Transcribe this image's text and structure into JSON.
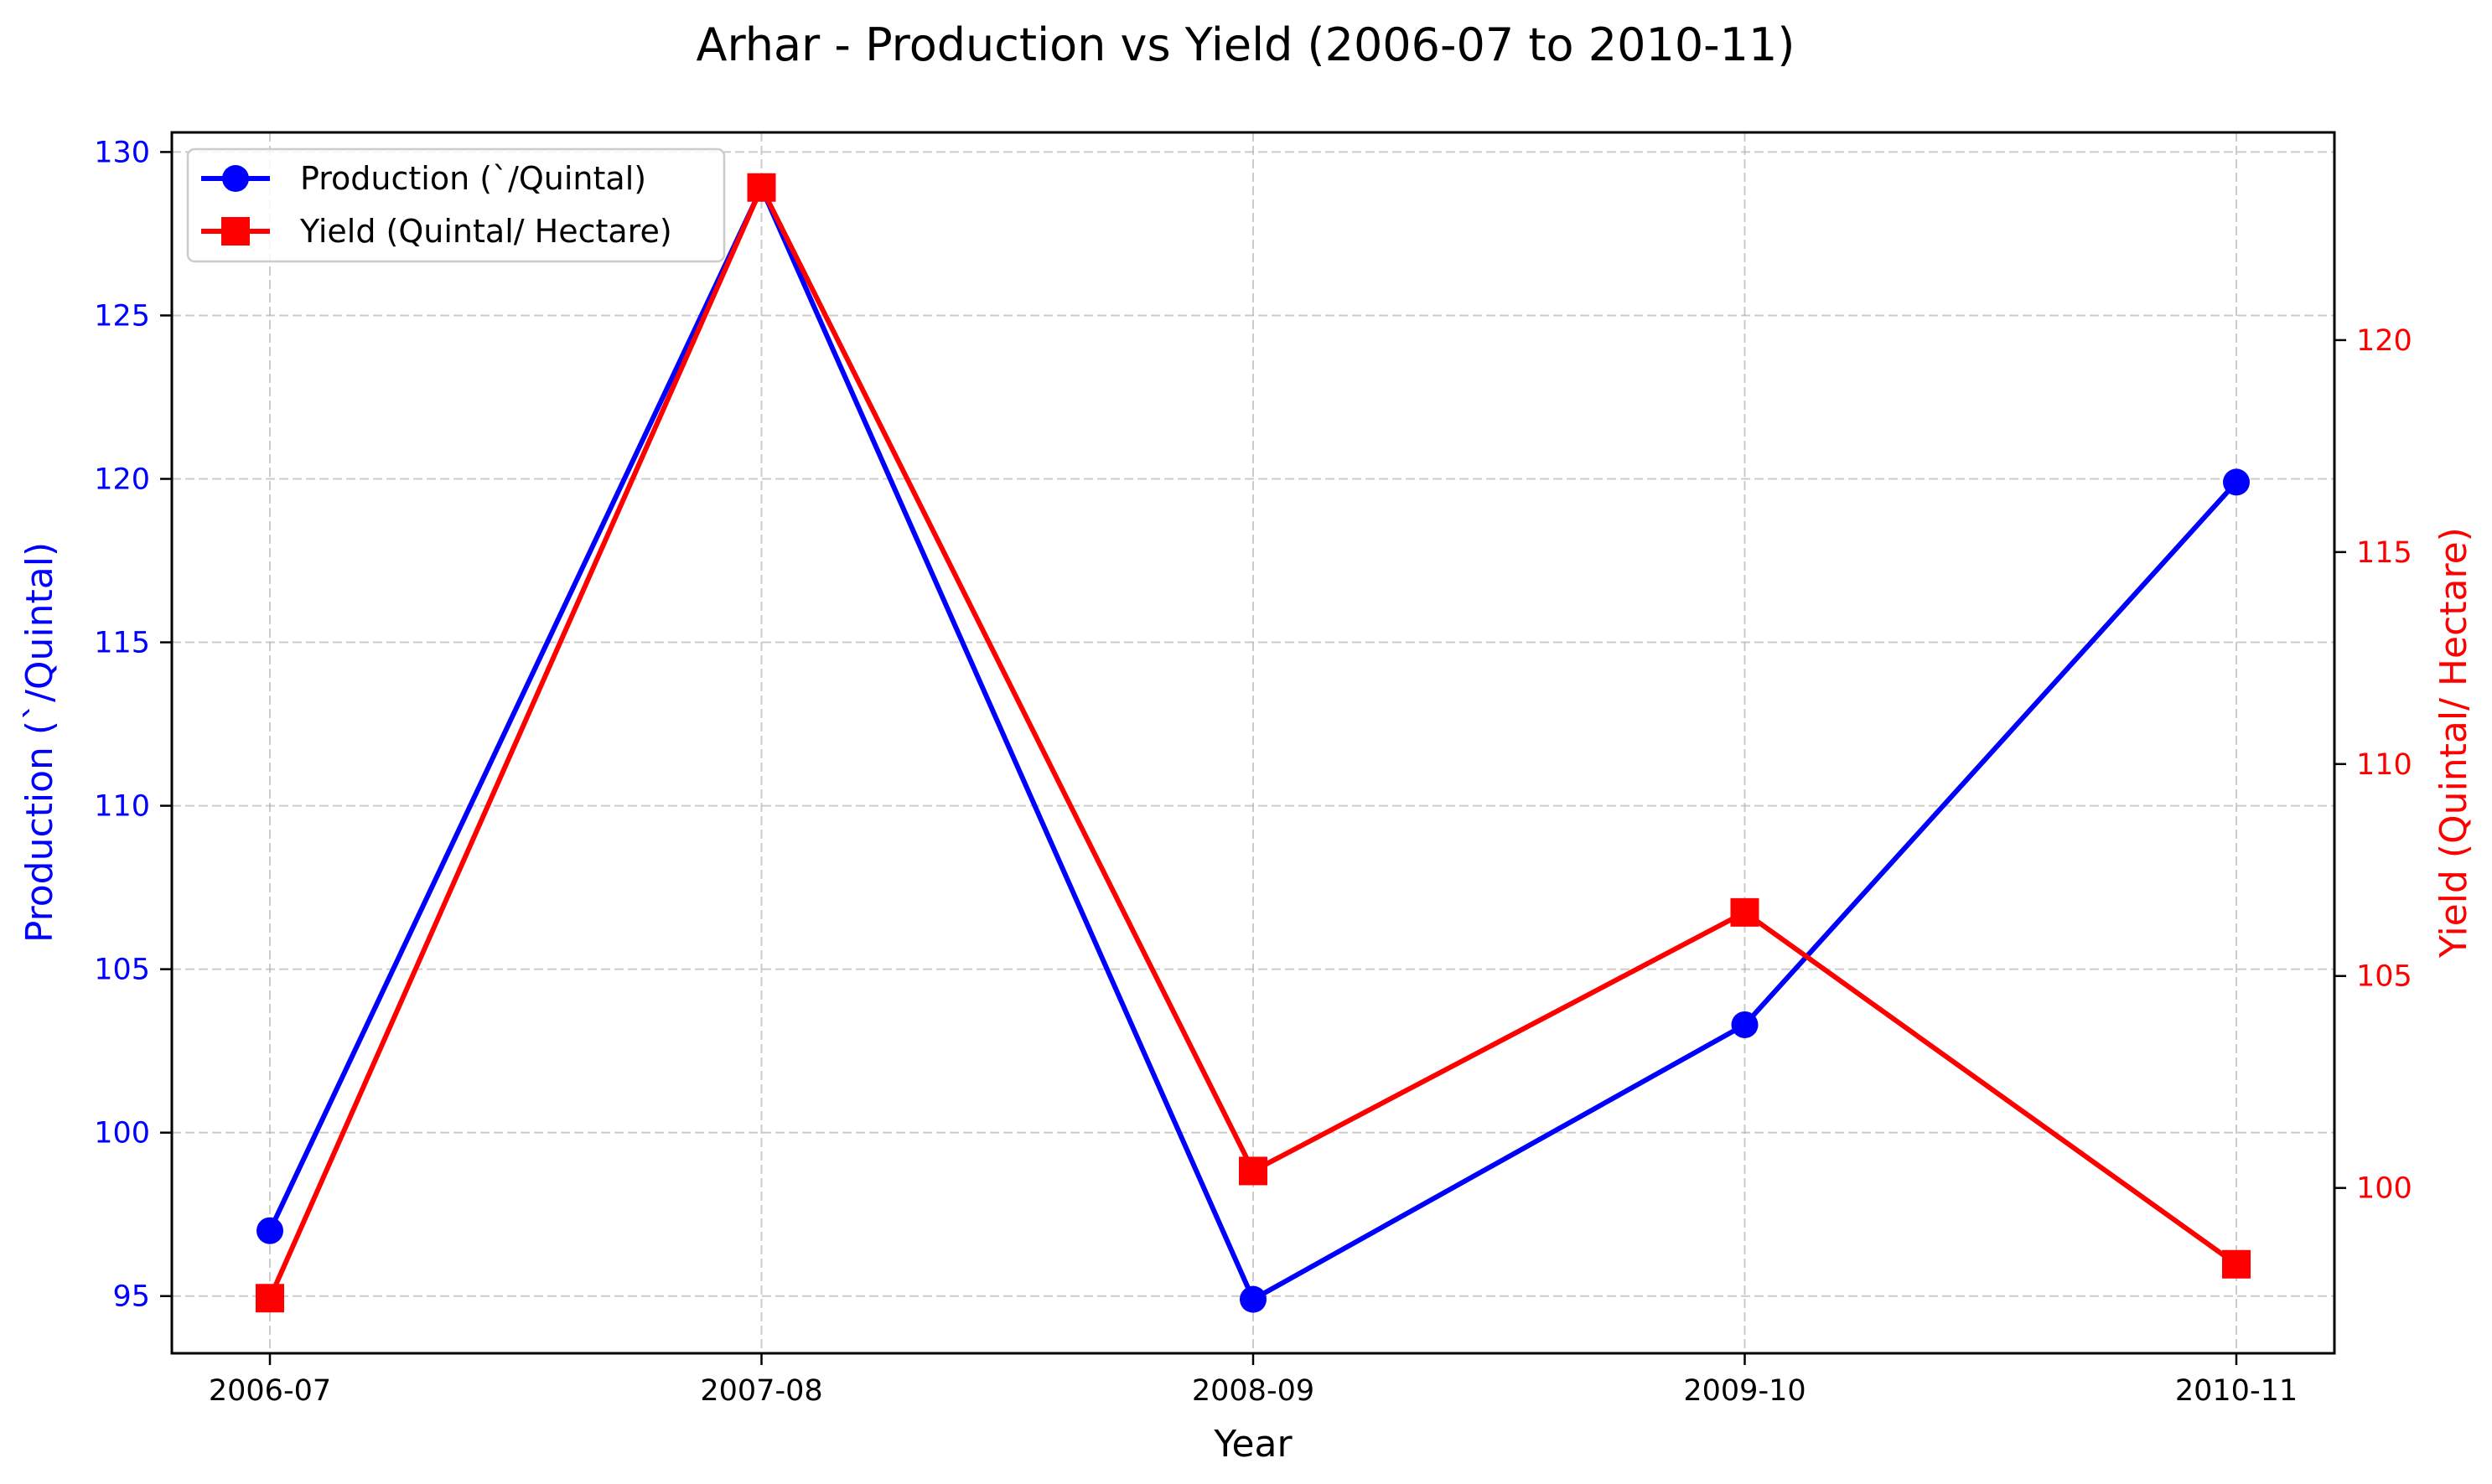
{
  "chart_data": {
    "type": "line",
    "title": "Arhar - Production vs Yield (2006-07 to 2010-11)",
    "xlabel": "Year",
    "ylabel_left": "Production (`/Quintal)",
    "ylabel_right": "Yield (Quintal/ Hectare)",
    "categories": [
      "2006-07",
      "2007-08",
      "2008-09",
      "2009-10",
      "2010-11"
    ],
    "y_left": {
      "ticks": [
        95,
        100,
        105,
        110,
        115,
        120,
        125,
        130
      ],
      "range": [
        93.25,
        130.6
      ],
      "color": "#0000ff"
    },
    "y_right": {
      "ticks": [
        100,
        105,
        110,
        115,
        120
      ],
      "range": [
        96.1,
        124.9
      ],
      "color": "#ff0000"
    },
    "series": [
      {
        "name": "Production (`/Quintal)",
        "axis": "left",
        "color": "#0000ff",
        "marker": "circle",
        "values": [
          97.0,
          128.9,
          94.9,
          103.3,
          119.9
        ]
      },
      {
        "name": "Yield (Quintal/ Hectare)",
        "axis": "right",
        "color": "#ff0000",
        "marker": "square",
        "values": [
          97.4,
          123.6,
          100.4,
          106.5,
          98.2
        ]
      }
    ],
    "grid": true,
    "legend_position": "top-left"
  }
}
